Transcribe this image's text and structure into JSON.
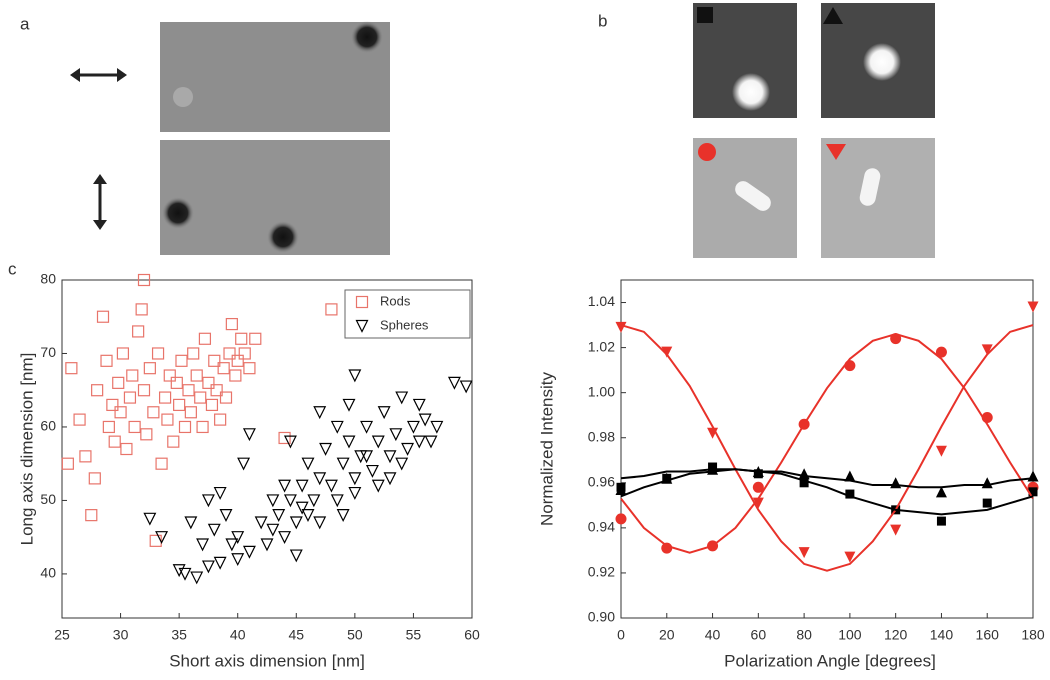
{
  "figure": {
    "panel_labels": [
      "a",
      "b",
      "c"
    ]
  },
  "chart_data": [
    {
      "type": "scatter",
      "x_label": "Short axis dimension [nm]",
      "y_label": "Long axis dimension [nm]",
      "xlim": [
        25,
        60
      ],
      "ylim": [
        34,
        80
      ],
      "xticks": [
        25,
        30,
        35,
        40,
        45,
        50,
        55,
        60
      ],
      "yticks": [
        40,
        50,
        60,
        70,
        80
      ],
      "legend": "upper right",
      "series": [
        {
          "name": "Rods",
          "color": "#e8746a",
          "marker": "square-open",
          "x": [
            25.5,
            25.8,
            26.5,
            27,
            27.5,
            27.8,
            28,
            28.5,
            28.8,
            29,
            29.3,
            29.5,
            29.8,
            30,
            30.2,
            30.5,
            30.8,
            31,
            31.2,
            31.5,
            31.8,
            32,
            32.2,
            32.5,
            32.8,
            33,
            33.2,
            33.5,
            33.8,
            34,
            34.2,
            34.5,
            34.8,
            35,
            35.2,
            35.5,
            35.8,
            36,
            36.2,
            36.5,
            36.8,
            37,
            37.2,
            37.5,
            37.8,
            38,
            38.2,
            38.5,
            38.8,
            39,
            39.3,
            39.5,
            39.8,
            40,
            40.3,
            40.6,
            41,
            41.5,
            44,
            48,
            32
          ],
          "values": [
            55,
            68,
            61,
            56,
            48,
            53,
            65,
            75,
            69,
            60,
            63,
            58,
            66,
            62,
            70,
            57,
            64,
            67,
            60,
            73,
            76,
            65,
            59,
            68,
            62,
            44.5,
            70,
            55,
            64,
            61,
            67,
            58,
            66,
            63,
            69,
            60,
            65,
            62,
            70,
            67,
            64,
            60,
            72,
            66,
            63,
            69,
            65,
            61,
            68,
            64,
            70,
            74,
            67,
            69,
            72,
            70,
            68,
            72,
            58.5,
            76,
            80
          ]
        },
        {
          "name": "Spheres",
          "color": "#000000",
          "marker": "triangle-down-open",
          "x": [
            32.5,
            33.5,
            35,
            35.5,
            36,
            36.5,
            37,
            37.5,
            37.5,
            38,
            38.5,
            38.5,
            39,
            39.5,
            40,
            40,
            40.5,
            41,
            41,
            42,
            42.5,
            43,
            43.5,
            44,
            44.5,
            44.5,
            45,
            45.5,
            45.5,
            46,
            46.5,
            47,
            47,
            47.5,
            48,
            48.5,
            48.5,
            49,
            49,
            49.5,
            49.5,
            50,
            50,
            50,
            50.5,
            51,
            51.5,
            52,
            52,
            52.5,
            53,
            53,
            53.5,
            54,
            54,
            54.5,
            55,
            55.5,
            55.5,
            56,
            56.5,
            57,
            58.5,
            59.5,
            45,
            43,
            47,
            51,
            44,
            46
          ],
          "values": [
            47.5,
            45,
            40.5,
            40,
            47,
            39.5,
            44,
            50,
            41,
            46,
            51,
            41.5,
            48,
            44,
            45,
            42,
            55,
            59,
            43,
            47,
            44,
            46,
            48,
            45,
            50,
            58,
            47,
            52,
            49,
            55,
            50,
            53,
            47,
            57,
            52,
            60,
            50,
            55,
            48,
            63,
            58,
            67,
            53,
            51,
            56,
            60,
            54,
            58,
            52,
            62,
            56,
            53,
            59,
            64,
            55,
            57,
            60,
            58,
            63,
            61,
            58,
            60,
            66,
            65.5,
            42.5,
            50,
            62,
            56,
            52,
            48
          ]
        }
      ]
    },
    {
      "type": "line",
      "x_label": "Polarization Angle [degrees]",
      "y_label": "Normalized Intensity",
      "xlim": [
        0,
        180
      ],
      "ylim": [
        0.9,
        1.05
      ],
      "xticks": [
        0,
        20,
        40,
        60,
        80,
        100,
        120,
        140,
        160,
        180
      ],
      "yticks": [
        {
          "value": 0.9,
          "label": "0.90"
        },
        0.92,
        0.94,
        0.96,
        0.98,
        {
          "value": 1,
          "label": "1.00"
        },
        1.02,
        1.04
      ],
      "series": [
        {
          "color": "#e8322a",
          "marker": "circle",
          "x": [
            0,
            20,
            40,
            60,
            80,
            100,
            120,
            140,
            160,
            180
          ],
          "values": [
            0.944,
            0.931,
            0.932,
            0.958,
            0.986,
            1.012,
            1.024,
            1.018,
            0.989,
            0.958
          ]
        },
        {
          "color": "#e8322a",
          "marker": "triangle-down",
          "x": [
            0,
            20,
            40,
            60,
            80,
            100,
            120,
            140,
            160,
            180
          ],
          "values": [
            1.029,
            1.018,
            0.982,
            0.951,
            0.929,
            0.927,
            0.939,
            0.974,
            1.019,
            1.038
          ]
        },
        {
          "color": "#000000",
          "marker": "square",
          "x": [
            0,
            20,
            40,
            60,
            80,
            100,
            120,
            140,
            160,
            180
          ],
          "values": [
            0.958,
            0.962,
            0.967,
            0.964,
            0.96,
            0.955,
            0.948,
            0.943,
            0.951,
            0.956
          ]
        },
        {
          "color": "#000000",
          "marker": "triangle-up",
          "x": [
            0,
            20,
            40,
            60,
            80,
            100,
            120,
            140,
            160,
            180
          ],
          "values": [
            0.957,
            0.962,
            0.966,
            0.965,
            0.964,
            0.963,
            0.96,
            0.956,
            0.96,
            0.963
          ]
        },
        {
          "color": "#e8322a",
          "marker": "none",
          "x": [
            0,
            10,
            20,
            30,
            40,
            50,
            60,
            70,
            80,
            90,
            100,
            110,
            120,
            130,
            140,
            150,
            160,
            170,
            180
          ],
          "values": [
            0.953,
            0.94,
            0.932,
            0.929,
            0.932,
            0.94,
            0.953,
            0.969,
            0.986,
            1.002,
            1.015,
            1.023,
            1.026,
            1.023,
            1.015,
            1.002,
            0.986,
            0.969,
            0.953
          ]
        },
        {
          "color": "#e8322a",
          "marker": "none",
          "x": [
            0,
            10,
            20,
            30,
            40,
            50,
            60,
            70,
            80,
            90,
            100,
            110,
            120,
            130,
            140,
            150,
            160,
            170,
            180
          ],
          "values": [
            1.03,
            1.027,
            1.017,
            1.003,
            0.985,
            0.966,
            0.948,
            0.934,
            0.924,
            0.921,
            0.924,
            0.934,
            0.948,
            0.966,
            0.985,
            1.003,
            1.017,
            1.027,
            1.03
          ]
        },
        {
          "color": "#000000",
          "marker": "none",
          "x": [
            0,
            10,
            20,
            30,
            40,
            50,
            60,
            70,
            80,
            90,
            100,
            110,
            120,
            130,
            140,
            150,
            160,
            170,
            180
          ],
          "values": [
            0.954,
            0.958,
            0.961,
            0.964,
            0.965,
            0.966,
            0.965,
            0.964,
            0.961,
            0.958,
            0.954,
            0.951,
            0.948,
            0.947,
            0.946,
            0.947,
            0.948,
            0.951,
            0.954
          ]
        },
        {
          "color": "#000000",
          "marker": "none",
          "x": [
            0,
            10,
            20,
            30,
            40,
            50,
            60,
            70,
            80,
            90,
            100,
            110,
            120,
            130,
            140,
            150,
            160,
            170,
            180
          ],
          "values": [
            0.962,
            0.963,
            0.965,
            0.965,
            0.966,
            0.966,
            0.965,
            0.965,
            0.963,
            0.962,
            0.961,
            0.959,
            0.959,
            0.958,
            0.958,
            0.959,
            0.959,
            0.961,
            0.962
          ]
        }
      ]
    }
  ]
}
